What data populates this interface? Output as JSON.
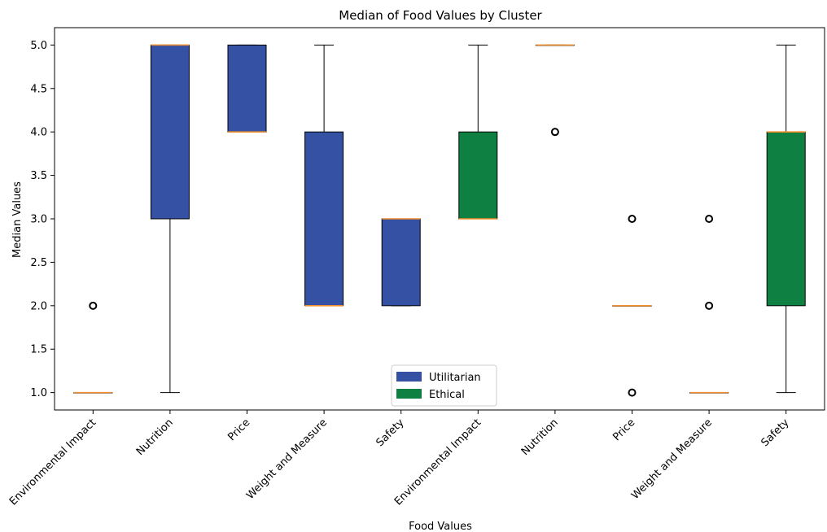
{
  "chart_data": {
    "type": "boxplot",
    "title": "Median of Food Values by Cluster",
    "xlabel": "Food Values",
    "ylabel": "Median Values",
    "ylim": [
      0.8,
      5.2
    ],
    "yticks": [
      1.0,
      1.5,
      2.0,
      2.5,
      3.0,
      3.5,
      4.0,
      4.5,
      5.0
    ],
    "ytick_labels": [
      "1.0",
      "1.5",
      "2.0",
      "2.5",
      "3.0",
      "3.5",
      "4.0",
      "4.5",
      "5.0"
    ],
    "legend": {
      "placement": "lower-center",
      "entries": [
        {
          "label": "Utilitarian",
          "color": "#3451a4"
        },
        {
          "label": "Ethical",
          "color": "#0d8042"
        }
      ]
    },
    "median_color": "#f28e2b",
    "categories": [
      "Environmental Impact",
      "Nutrition",
      "Price",
      "Weight and Measure",
      "Safety",
      "Environmental Impact",
      "Nutrition",
      "Price",
      "Weight and Measure",
      "Safety"
    ],
    "boxes": [
      {
        "label": "Environmental Impact",
        "cluster": "Utilitarian",
        "whisker_low": 1,
        "q1": 1,
        "median": 1,
        "q3": 1,
        "whisker_high": 1,
        "outliers": [
          2
        ]
      },
      {
        "label": "Nutrition",
        "cluster": "Utilitarian",
        "whisker_low": 1,
        "q1": 3,
        "median": 5,
        "q3": 5,
        "whisker_high": 5,
        "outliers": []
      },
      {
        "label": "Price",
        "cluster": "Utilitarian",
        "whisker_low": 4,
        "q1": 4,
        "median": 4,
        "q3": 5,
        "whisker_high": 5,
        "outliers": []
      },
      {
        "label": "Weight and Measure",
        "cluster": "Utilitarian",
        "whisker_low": 2,
        "q1": 2,
        "median": 2,
        "q3": 4,
        "whisker_high": 5,
        "outliers": []
      },
      {
        "label": "Safety",
        "cluster": "Utilitarian",
        "whisker_low": 2,
        "q1": 2,
        "median": 3,
        "q3": 3,
        "whisker_high": 3,
        "outliers": []
      },
      {
        "label": "Environmental Impact",
        "cluster": "Ethical",
        "whisker_low": 3,
        "q1": 3,
        "median": 3,
        "q3": 4,
        "whisker_high": 5,
        "outliers": []
      },
      {
        "label": "Nutrition",
        "cluster": "Ethical",
        "whisker_low": 5,
        "q1": 5,
        "median": 5,
        "q3": 5,
        "whisker_high": 5,
        "outliers": [
          4
        ]
      },
      {
        "label": "Price",
        "cluster": "Ethical",
        "whisker_low": 2,
        "q1": 2,
        "median": 2,
        "q3": 2,
        "whisker_high": 2,
        "outliers": [
          1,
          3
        ]
      },
      {
        "label": "Weight and Measure",
        "cluster": "Ethical",
        "whisker_low": 1,
        "q1": 1,
        "median": 1,
        "q3": 1,
        "whisker_high": 1,
        "outliers": [
          2,
          3
        ]
      },
      {
        "label": "Safety",
        "cluster": "Ethical",
        "whisker_low": 1,
        "q1": 2,
        "median": 4,
        "q3": 4,
        "whisker_high": 5,
        "outliers": []
      }
    ]
  }
}
